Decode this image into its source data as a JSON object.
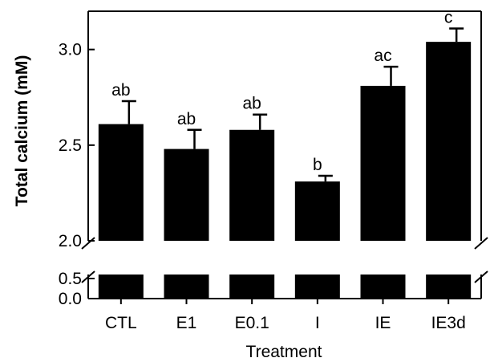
{
  "chart_data": {
    "type": "bar",
    "title": "",
    "xlabel": "Treatment",
    "ylabel": "Total calcium (mM)",
    "broken_axis": true,
    "ylim_upper": [
      2.0,
      3.2
    ],
    "ylim_lower": [
      0.0,
      0.6
    ],
    "yticks_upper": [
      "2.0",
      "2.5",
      "3.0"
    ],
    "yticks_lower": [
      "0.0",
      "0.5"
    ],
    "categories": [
      "CTL",
      "E1",
      "E0.1",
      "I",
      "IE",
      "IE3d"
    ],
    "series": [
      {
        "values": [
          2.61,
          2.48,
          2.58,
          2.31,
          2.81,
          3.04
        ],
        "errors": [
          0.12,
          0.1,
          0.08,
          0.03,
          0.1,
          0.07
        ],
        "color": "#000000",
        "letters": [
          "ab",
          "ab",
          "ab",
          "b",
          "ac",
          "c"
        ]
      }
    ],
    "grid": false,
    "legend": "none"
  }
}
